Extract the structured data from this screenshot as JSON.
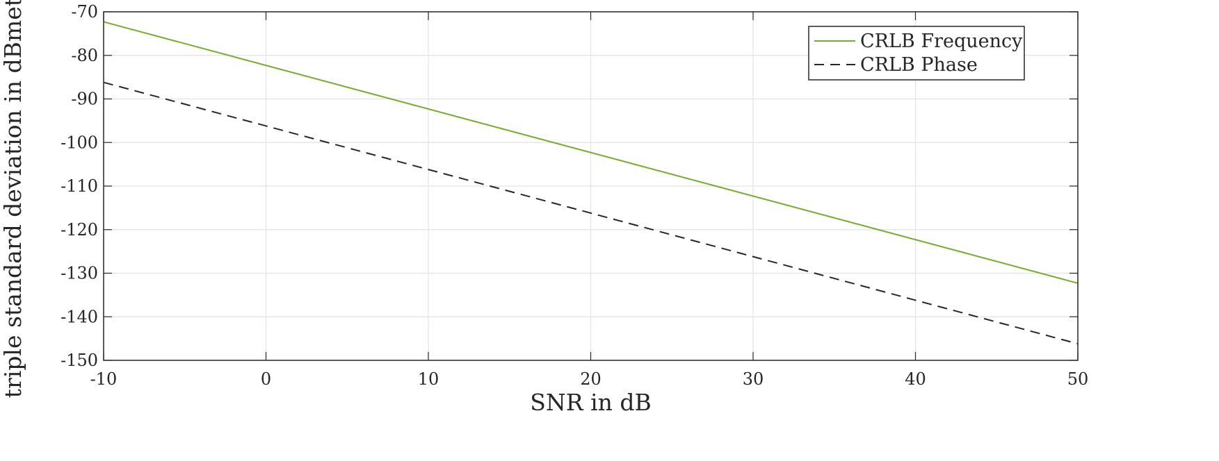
{
  "chart_data": {
    "type": "line",
    "xlabel": "SNR in dB",
    "ylabel": "triple standard deviation in dBmeter",
    "xlim": [
      -10,
      50
    ],
    "ylim": [
      -150,
      -70
    ],
    "xticks": [
      -10,
      0,
      10,
      20,
      30,
      40,
      50
    ],
    "yticks": [
      -70,
      -80,
      -90,
      -100,
      -110,
      -120,
      -130,
      -140,
      -150
    ],
    "grid": true,
    "legend_position": "top-right",
    "series": [
      {
        "name": "CRLB Frequency",
        "color": "#77ac30",
        "style": "solid",
        "x": [
          -10,
          50
        ],
        "y": [
          -72.3,
          -132.3
        ]
      },
      {
        "name": "CRLB Phase",
        "color": "#262626",
        "style": "dashed",
        "x": [
          -10,
          50
        ],
        "y": [
          -86.2,
          -146.2
        ]
      }
    ]
  }
}
